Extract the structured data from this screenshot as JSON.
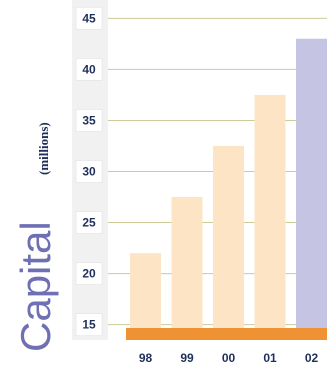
{
  "chart_data": {
    "type": "bar",
    "categories": [
      "98",
      "99",
      "00",
      "01",
      "02"
    ],
    "values": [
      22,
      27.5,
      32.5,
      37.5,
      43
    ],
    "ylabel": "Capital",
    "ylabel_unit": "(millions)",
    "yticks": [
      15,
      20,
      25,
      30,
      35,
      40,
      45
    ],
    "ylim": [
      13.5,
      46.5
    ],
    "grid": true,
    "colors": {
      "bar": "#fde4c4",
      "bar_highlight": "#c5c5e3",
      "baseline": "#ef9233",
      "grid": "#cccc99",
      "tick_box": "#ffffff",
      "tick_box_border": "#dddddd",
      "axis_band": "#f1f1f1"
    }
  }
}
